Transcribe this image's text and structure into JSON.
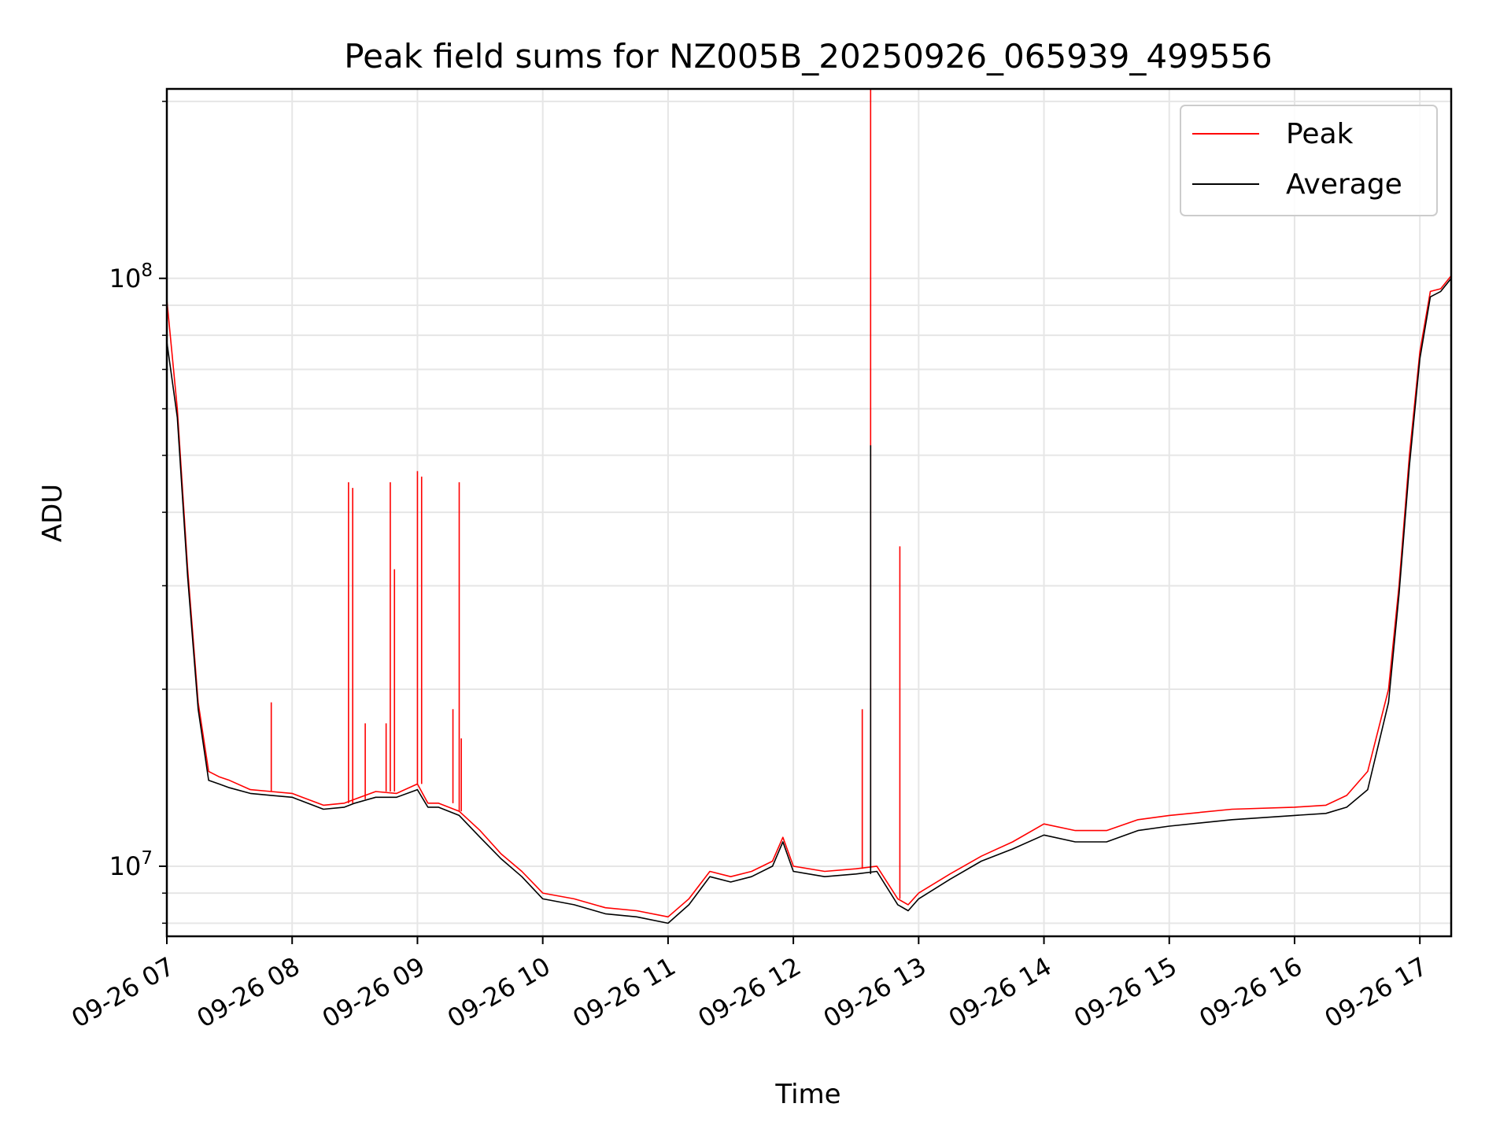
{
  "chart_data": {
    "type": "line",
    "title": "Peak field sums for NZ005B_20250926_065939_499556",
    "xlabel": "Time",
    "ylabel": "ADU",
    "x_axis": {
      "kind": "time",
      "range": [
        "2025-09-26T07:00",
        "2025-09-26T17:15"
      ],
      "ticks": [
        "2025-09-26T07:00",
        "2025-09-26T08:00",
        "2025-09-26T09:00",
        "2025-09-26T10:00",
        "2025-09-26T11:00",
        "2025-09-26T12:00",
        "2025-09-26T13:00",
        "2025-09-26T14:00",
        "2025-09-26T15:00",
        "2025-09-26T16:00",
        "2025-09-26T17:00"
      ],
      "tick_labels": [
        "09-26 07",
        "09-26 08",
        "09-26 09",
        "09-26 10",
        "09-26 11",
        "09-26 12",
        "09-26 13",
        "09-26 14",
        "09-26 15",
        "09-26 16",
        "09-26 17"
      ]
    },
    "y_axis": {
      "scale": "log",
      "range": [
        7600000,
        210000000
      ],
      "major_ticks": [
        10000000,
        100000000
      ],
      "major_tick_labels": [
        {
          "base": "10",
          "exp": "7"
        },
        {
          "base": "10",
          "exp": "8"
        }
      ],
      "minor_ticks": [
        8000000,
        9000000,
        20000000,
        30000000,
        40000000,
        50000000,
        60000000,
        70000000,
        80000000,
        90000000,
        200000000
      ]
    },
    "grid": true,
    "legend": {
      "position": "top-right",
      "entries": [
        "Peak",
        "Average"
      ]
    },
    "series": [
      {
        "name": "Peak",
        "color": "#ff0000",
        "x": [
          "2025-09-26T07:00",
          "2025-09-26T07:05",
          "2025-09-26T07:10",
          "2025-09-26T07:15",
          "2025-09-26T07:20",
          "2025-09-26T07:25",
          "2025-09-26T07:30",
          "2025-09-26T07:40",
          "2025-09-26T07:50",
          "2025-09-26T08:00",
          "2025-09-26T08:15",
          "2025-09-26T08:25",
          "2025-09-26T08:30",
          "2025-09-26T08:40",
          "2025-09-26T08:50",
          "2025-09-26T09:00",
          "2025-09-26T09:05",
          "2025-09-26T09:10",
          "2025-09-26T09:20",
          "2025-09-26T09:30",
          "2025-09-26T09:40",
          "2025-09-26T09:50",
          "2025-09-26T10:00",
          "2025-09-26T10:15",
          "2025-09-26T10:30",
          "2025-09-26T10:45",
          "2025-09-26T11:00",
          "2025-09-26T11:10",
          "2025-09-26T11:20",
          "2025-09-26T11:30",
          "2025-09-26T11:40",
          "2025-09-26T11:50",
          "2025-09-26T11:55",
          "2025-09-26T12:00",
          "2025-09-26T12:15",
          "2025-09-26T12:30",
          "2025-09-26T12:40",
          "2025-09-26T12:50",
          "2025-09-26T12:55",
          "2025-09-26T13:00",
          "2025-09-26T13:15",
          "2025-09-26T13:30",
          "2025-09-26T13:45",
          "2025-09-26T14:00",
          "2025-09-26T14:15",
          "2025-09-26T14:30",
          "2025-09-26T14:45",
          "2025-09-26T15:00",
          "2025-09-26T15:30",
          "2025-09-26T16:00",
          "2025-09-26T16:15",
          "2025-09-26T16:25",
          "2025-09-26T16:35",
          "2025-09-26T16:45",
          "2025-09-26T16:50",
          "2025-09-26T16:55",
          "2025-09-26T17:00",
          "2025-09-26T17:05",
          "2025-09-26T17:10",
          "2025-09-26T17:15"
        ],
        "y": [
          92000000,
          60000000,
          32000000,
          19000000,
          14500000,
          14200000,
          14000000,
          13500000,
          13400000,
          13300000,
          12700000,
          12800000,
          13000000,
          13400000,
          13300000,
          13800000,
          12800000,
          12800000,
          12400000,
          11500000,
          10500000,
          9800000,
          9000000,
          8800000,
          8500000,
          8400000,
          8200000,
          8800000,
          9800000,
          9600000,
          9800000,
          10200000,
          11200000,
          10000000,
          9800000,
          9900000,
          10000000,
          8800000,
          8600000,
          9000000,
          9700000,
          10400000,
          11000000,
          11800000,
          11500000,
          11500000,
          12000000,
          12200000,
          12500000,
          12600000,
          12700000,
          13200000,
          14500000,
          20000000,
          30000000,
          50000000,
          75000000,
          95000000,
          96000000,
          101000000
        ],
        "spikes": [
          {
            "x": "2025-09-26T07:50",
            "y": 19000000
          },
          {
            "x": "2025-09-26T08:27",
            "y": 45000000
          },
          {
            "x": "2025-09-26T08:29",
            "y": 44000000
          },
          {
            "x": "2025-09-26T08:35",
            "y": 17500000
          },
          {
            "x": "2025-09-26T08:45",
            "y": 17500000
          },
          {
            "x": "2025-09-26T08:47",
            "y": 45000000
          },
          {
            "x": "2025-09-26T08:49",
            "y": 32000000
          },
          {
            "x": "2025-09-26T09:00",
            "y": 47000000
          },
          {
            "x": "2025-09-26T09:02",
            "y": 46000000
          },
          {
            "x": "2025-09-26T09:17",
            "y": 18500000
          },
          {
            "x": "2025-09-26T09:20",
            "y": 45000000
          },
          {
            "x": "2025-09-26T09:21",
            "y": 16500000
          },
          {
            "x": "2025-09-26T12:33",
            "y": 18500000
          },
          {
            "x": "2025-09-26T12:37",
            "y": 210000000
          },
          {
            "x": "2025-09-26T12:51",
            "y": 35000000
          }
        ]
      },
      {
        "name": "Average",
        "color": "#000000",
        "x": [
          "2025-09-26T07:00",
          "2025-09-26T07:05",
          "2025-09-26T07:10",
          "2025-09-26T07:15",
          "2025-09-26T07:20",
          "2025-09-26T07:25",
          "2025-09-26T07:30",
          "2025-09-26T07:40",
          "2025-09-26T07:50",
          "2025-09-26T08:00",
          "2025-09-26T08:15",
          "2025-09-26T08:25",
          "2025-09-26T08:30",
          "2025-09-26T08:40",
          "2025-09-26T08:50",
          "2025-09-26T09:00",
          "2025-09-26T09:05",
          "2025-09-26T09:10",
          "2025-09-26T09:20",
          "2025-09-26T09:30",
          "2025-09-26T09:40",
          "2025-09-26T09:50",
          "2025-09-26T10:00",
          "2025-09-26T10:15",
          "2025-09-26T10:30",
          "2025-09-26T10:45",
          "2025-09-26T11:00",
          "2025-09-26T11:10",
          "2025-09-26T11:20",
          "2025-09-26T11:30",
          "2025-09-26T11:40",
          "2025-09-26T11:50",
          "2025-09-26T11:55",
          "2025-09-26T12:00",
          "2025-09-26T12:15",
          "2025-09-26T12:30",
          "2025-09-26T12:40",
          "2025-09-26T12:50",
          "2025-09-26T12:55",
          "2025-09-26T13:00",
          "2025-09-26T13:15",
          "2025-09-26T13:30",
          "2025-09-26T13:45",
          "2025-09-26T14:00",
          "2025-09-26T14:15",
          "2025-09-26T14:30",
          "2025-09-26T14:45",
          "2025-09-26T15:00",
          "2025-09-26T15:30",
          "2025-09-26T16:00",
          "2025-09-26T16:15",
          "2025-09-26T16:25",
          "2025-09-26T16:35",
          "2025-09-26T16:45",
          "2025-09-26T16:50",
          "2025-09-26T16:55",
          "2025-09-26T17:00",
          "2025-09-26T17:05",
          "2025-09-26T17:10",
          "2025-09-26T17:15"
        ],
        "y": [
          78000000,
          58000000,
          31000000,
          18500000,
          14000000,
          13800000,
          13600000,
          13300000,
          13200000,
          13100000,
          12500000,
          12600000,
          12800000,
          13100000,
          13100000,
          13500000,
          12600000,
          12600000,
          12200000,
          11200000,
          10300000,
          9600000,
          8800000,
          8600000,
          8300000,
          8200000,
          8000000,
          8600000,
          9600000,
          9400000,
          9600000,
          10000000,
          11000000,
          9800000,
          9600000,
          9700000,
          9800000,
          8600000,
          8400000,
          8800000,
          9500000,
          10200000,
          10700000,
          11300000,
          11000000,
          11000000,
          11500000,
          11700000,
          12000000,
          12200000,
          12300000,
          12600000,
          13500000,
          19000000,
          29000000,
          48000000,
          73000000,
          93000000,
          95000000,
          100000000
        ],
        "spikes": [
          {
            "x": "2025-09-26T12:37",
            "y": 52000000
          }
        ]
      }
    ]
  }
}
